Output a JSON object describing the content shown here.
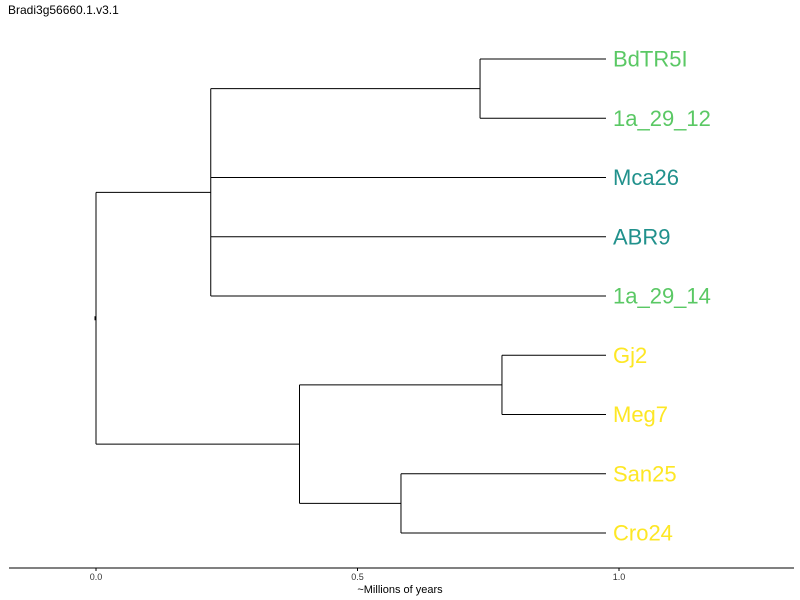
{
  "title": "Bradi3g56660.1.v3.1",
  "colors": {
    "light_green": "#5ac864",
    "teal": "#21918c",
    "yellow": "#fde725"
  },
  "chart_data": {
    "type": "tree",
    "xlabel": "~Millions of years",
    "xticks": [
      {
        "value": 0.0,
        "label": "0.0"
      },
      {
        "value": 0.5,
        "label": "0.5"
      },
      {
        "value": 1.0,
        "label": "1.0"
      }
    ],
    "tips": [
      {
        "name": "BdTR5I",
        "color": "#5ac864"
      },
      {
        "name": "1a_29_12",
        "color": "#5ac864"
      },
      {
        "name": "Mca26",
        "color": "#21918c"
      },
      {
        "name": "ABR9",
        "color": "#21918c"
      },
      {
        "name": "1a_29_14",
        "color": "#5ac864"
      },
      {
        "name": "Gj2",
        "color": "#fde725"
      },
      {
        "name": "Meg7",
        "color": "#fde725"
      },
      {
        "name": "San25",
        "color": "#fde725"
      },
      {
        "name": "Cro24",
        "color": "#fde725"
      }
    ],
    "tip_depth": 1.0,
    "nodes": [
      {
        "id": "root",
        "depth": 0.0,
        "children": [
          "n1",
          "n3"
        ]
      },
      {
        "id": "n1",
        "depth": 0.225,
        "children": [
          "n2",
          "Mca26",
          "ABR9",
          "1a_29_14"
        ]
      },
      {
        "id": "n2",
        "depth": 0.753,
        "children": [
          "BdTR5I",
          "1a_29_12"
        ]
      },
      {
        "id": "n3",
        "depth": 0.399,
        "children": [
          "n4",
          "n5"
        ]
      },
      {
        "id": "n4",
        "depth": 0.796,
        "children": [
          "Gj2",
          "Meg7"
        ]
      },
      {
        "id": "n5",
        "depth": 0.598,
        "children": [
          "San25",
          "Cro24"
        ]
      }
    ]
  }
}
